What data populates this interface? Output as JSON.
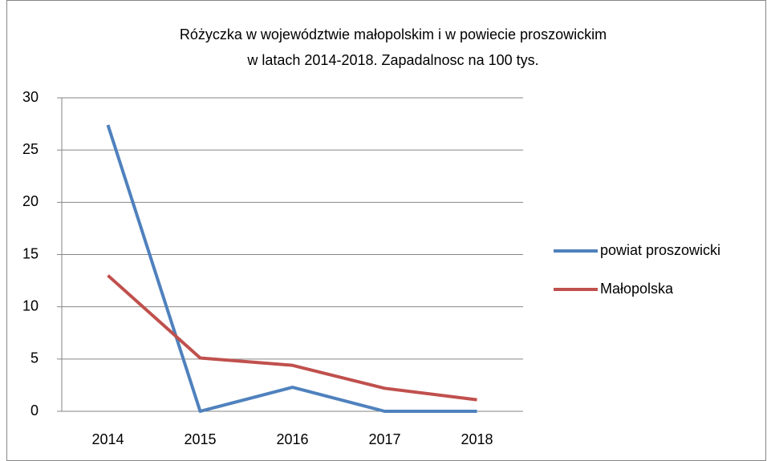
{
  "chart_data": {
    "type": "line",
    "title": [
      "Różyczka w województwie małopolskim i w powiecie proszowickim",
      "w latach 2014-2018. Zapadalnosc na 100 tys."
    ],
    "categories": [
      "2014",
      "2015",
      "2016",
      "2017",
      "2018"
    ],
    "series": [
      {
        "name": "powiat proszowicki",
        "color": "#4f81bd",
        "values": [
          27.4,
          0,
          2.3,
          0,
          0
        ]
      },
      {
        "name": "Małopolska",
        "color": "#c0504d",
        "values": [
          13.0,
          5.1,
          4.4,
          2.2,
          1.1
        ]
      }
    ],
    "ylim": [
      0,
      30
    ],
    "yticks": [
      0,
      5,
      10,
      15,
      20,
      25,
      30
    ],
    "grid": true,
    "legend": "right"
  }
}
